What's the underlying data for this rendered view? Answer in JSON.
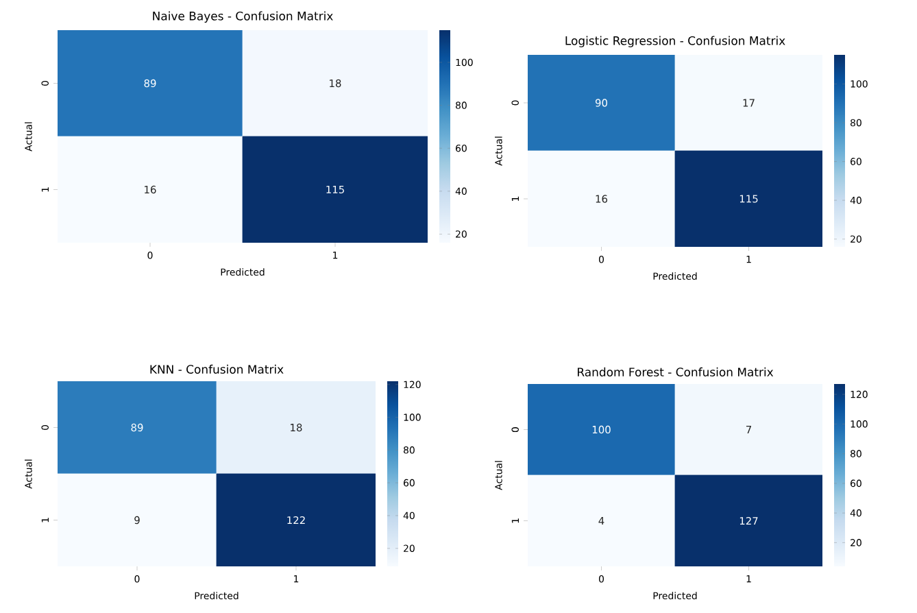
{
  "chart_data": [
    {
      "type": "heatmap",
      "title": "Naive Bayes - Confusion Matrix",
      "xlabel": "Predicted",
      "ylabel": "Actual",
      "categories": [
        "0",
        "1"
      ],
      "y_categories": [
        "0",
        "1"
      ],
      "cells": [
        [
          89,
          18
        ],
        [
          16,
          115
        ]
      ],
      "clim": [
        16,
        115
      ],
      "cticks": [
        20,
        40,
        60,
        80,
        100
      ],
      "data_labels": true
    },
    {
      "type": "heatmap",
      "title": "Logistic Regression - Confusion Matrix",
      "xlabel": "Predicted",
      "ylabel": "Actual",
      "categories": [
        "0",
        "1"
      ],
      "y_categories": [
        "0",
        "1"
      ],
      "cells": [
        [
          90,
          17
        ],
        [
          16,
          115
        ]
      ],
      "clim": [
        16,
        115
      ],
      "cticks": [
        20,
        40,
        60,
        80,
        100
      ],
      "data_labels": true
    },
    {
      "type": "heatmap",
      "title": "KNN - Confusion Matrix",
      "xlabel": "Predicted",
      "ylabel": "Actual",
      "categories": [
        "0",
        "1"
      ],
      "y_categories": [
        "0",
        "1"
      ],
      "cells": [
        [
          89,
          18
        ],
        [
          9,
          122
        ]
      ],
      "clim": [
        9,
        122
      ],
      "cticks": [
        20,
        40,
        60,
        80,
        100,
        120
      ],
      "data_labels": true
    },
    {
      "type": "heatmap",
      "title": "Random Forest - Confusion Matrix",
      "xlabel": "Predicted",
      "ylabel": "Actual",
      "categories": [
        "0",
        "1"
      ],
      "y_categories": [
        "0",
        "1"
      ],
      "cells": [
        [
          100,
          7
        ],
        [
          4,
          127
        ]
      ],
      "clim": [
        4,
        127
      ],
      "cticks": [
        20,
        40,
        60,
        80,
        100,
        120
      ],
      "data_labels": true
    }
  ]
}
